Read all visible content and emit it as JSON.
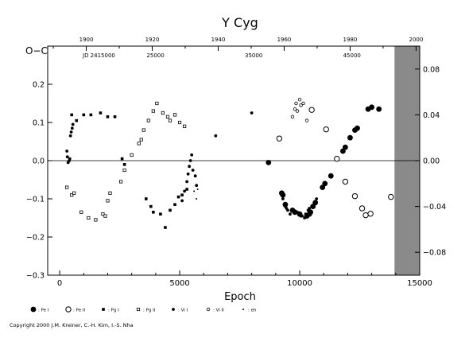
{
  "chart_data": {
    "type": "scatter",
    "title": "Y Cyg",
    "xlabel": "Epoch",
    "ylabel": "O−C",
    "xlim": [
      -500,
      15000
    ],
    "ylim": [
      -0.3,
      0.3
    ],
    "y2lim": [
      -0.1,
      0.1
    ],
    "x_ticks": [
      "0",
      "5000",
      "10000",
      "15000"
    ],
    "y_ticks": [
      "−0.3",
      "−0.2",
      "−0.1",
      "0.0",
      "0.1",
      "0.2"
    ],
    "y2_ticks": [
      "−0.08",
      "−0.04",
      "0.00",
      "0.04",
      "0.08"
    ],
    "top_year_ticks": [
      "1900",
      "1920",
      "1940",
      "1960",
      "1980",
      "2000"
    ],
    "jd_prefix": "JD 2415000",
    "jd_ticks": [
      "25000",
      "35000",
      "45000"
    ],
    "legend": [
      {
        "name": "Pe I",
        "symbol": "big-filled-circle"
      },
      {
        "name": "Pe II",
        "symbol": "big-open-circle"
      },
      {
        "name": "Pg I",
        "symbol": "filled-square"
      },
      {
        "name": "Pg II",
        "symbol": "open-square"
      },
      {
        "name": "Vi I",
        "symbol": "small-filled-circle"
      },
      {
        "name": "Vi II",
        "symbol": "small-open-circle"
      },
      {
        "name": "eh",
        "symbol": "dot"
      }
    ],
    "series": [
      {
        "name": "Pe I",
        "points": [
          [
            8700,
            -0.005
          ],
          [
            9250,
            -0.085
          ],
          [
            9300,
            -0.09
          ],
          [
            9400,
            -0.115
          ],
          [
            9700,
            -0.13
          ],
          [
            9800,
            -0.135
          ],
          [
            10000,
            -0.14
          ],
          [
            10300,
            -0.145
          ],
          [
            10400,
            -0.14
          ],
          [
            10450,
            -0.135
          ],
          [
            10550,
            -0.12
          ],
          [
            10650,
            -0.11
          ],
          [
            10950,
            -0.07
          ],
          [
            11050,
            -0.06
          ],
          [
            11300,
            -0.04
          ],
          [
            11800,
            0.025
          ],
          [
            11900,
            0.035
          ],
          [
            12100,
            0.06
          ],
          [
            12300,
            0.08
          ],
          [
            12400,
            0.085
          ],
          [
            12850,
            0.135
          ],
          [
            13000,
            0.14
          ],
          [
            13300,
            0.135
          ]
        ]
      },
      {
        "name": "Pe II",
        "points": [
          [
            9150,
            0.058
          ],
          [
            10500,
            0.133
          ],
          [
            11100,
            0.082
          ],
          [
            11550,
            0.005
          ],
          [
            11900,
            -0.055
          ],
          [
            12300,
            -0.093
          ],
          [
            12600,
            -0.125
          ],
          [
            12750,
            -0.143
          ],
          [
            12950,
            -0.139
          ],
          [
            13800,
            -0.095
          ]
        ]
      },
      {
        "name": "Pg I",
        "points": [
          [
            500,
            0.12
          ],
          [
            700,
            0.105
          ],
          [
            1000,
            0.12
          ],
          [
            1300,
            0.12
          ],
          [
            1700,
            0.125
          ],
          [
            2000,
            0.115
          ],
          [
            2300,
            0.115
          ],
          [
            2600,
            0.005
          ],
          [
            2700,
            -0.01
          ],
          [
            3600,
            -0.1
          ],
          [
            3800,
            -0.12
          ],
          [
            3900,
            -0.135
          ],
          [
            4200,
            -0.14
          ],
          [
            4400,
            -0.175
          ],
          [
            4600,
            -0.13
          ],
          [
            4800,
            -0.115
          ],
          [
            4950,
            -0.095
          ],
          [
            5100,
            -0.09
          ],
          [
            5300,
            -0.075
          ]
        ]
      },
      {
        "name": "Pg II",
        "points": [
          [
            300,
            -0.07
          ],
          [
            500,
            -0.09
          ],
          [
            600,
            -0.085
          ],
          [
            900,
            -0.135
          ],
          [
            1200,
            -0.15
          ],
          [
            1500,
            -0.155
          ],
          [
            1800,
            -0.14
          ],
          [
            1900,
            -0.145
          ],
          [
            2000,
            -0.105
          ],
          [
            2100,
            -0.085
          ],
          [
            2550,
            -0.055
          ],
          [
            2700,
            -0.025
          ],
          [
            3000,
            0.015
          ],
          [
            3300,
            0.045
          ],
          [
            3400,
            0.055
          ],
          [
            3500,
            0.08
          ],
          [
            3700,
            0.105
          ],
          [
            3900,
            0.13
          ],
          [
            4050,
            0.15
          ],
          [
            4300,
            0.125
          ],
          [
            4500,
            0.115
          ],
          [
            4600,
            0.105
          ],
          [
            4800,
            0.12
          ],
          [
            5000,
            0.1
          ],
          [
            5200,
            0.09
          ]
        ]
      },
      {
        "name": "Vi I",
        "points": [
          [
            300,
            0.025
          ],
          [
            320,
            0.01
          ],
          [
            350,
            -0.005
          ],
          [
            400,
            0.0
          ],
          [
            420,
            0.005
          ],
          [
            450,
            0.065
          ],
          [
            480,
            0.075
          ],
          [
            520,
            0.085
          ],
          [
            550,
            0.095
          ],
          [
            5100,
            -0.105
          ],
          [
            5200,
            -0.08
          ],
          [
            5300,
            -0.055
          ],
          [
            5350,
            -0.035
          ],
          [
            5400,
            -0.015
          ],
          [
            5450,
            0.0
          ],
          [
            5500,
            0.015
          ],
          [
            5550,
            -0.025
          ],
          [
            5650,
            -0.04
          ],
          [
            5700,
            -0.065
          ],
          [
            6500,
            0.065
          ],
          [
            8000,
            0.125
          ],
          [
            9250,
            -0.09
          ],
          [
            9300,
            -0.1
          ],
          [
            9400,
            -0.12
          ],
          [
            9450,
            -0.125
          ],
          [
            9500,
            -0.13
          ],
          [
            9600,
            -0.14
          ],
          [
            9700,
            -0.13
          ],
          [
            9900,
            -0.135
          ],
          [
            10000,
            -0.14
          ],
          [
            10050,
            -0.145
          ],
          [
            10100,
            -0.145
          ],
          [
            10200,
            -0.15
          ],
          [
            10250,
            -0.14
          ],
          [
            10350,
            -0.13
          ],
          [
            10400,
            -0.125
          ],
          [
            10600,
            -0.12
          ],
          [
            10700,
            -0.1
          ]
        ]
      },
      {
        "name": "Vi II",
        "points": [
          [
            9700,
            0.115
          ],
          [
            9800,
            0.135
          ],
          [
            9850,
            0.15
          ],
          [
            9900,
            0.13
          ],
          [
            10000,
            0.16
          ],
          [
            10050,
            0.145
          ],
          [
            10150,
            0.15
          ],
          [
            10300,
            0.105
          ]
        ]
      },
      {
        "name": "eh",
        "points": [
          [
            5600,
            -0.08
          ],
          [
            5700,
            -0.1
          ],
          [
            5750,
            -0.075
          ]
        ]
      }
    ]
  },
  "footer": {
    "copyright": "Copyright 2000 J.M. Kreiner, C.-H. Kim, I.-S. Nha"
  }
}
